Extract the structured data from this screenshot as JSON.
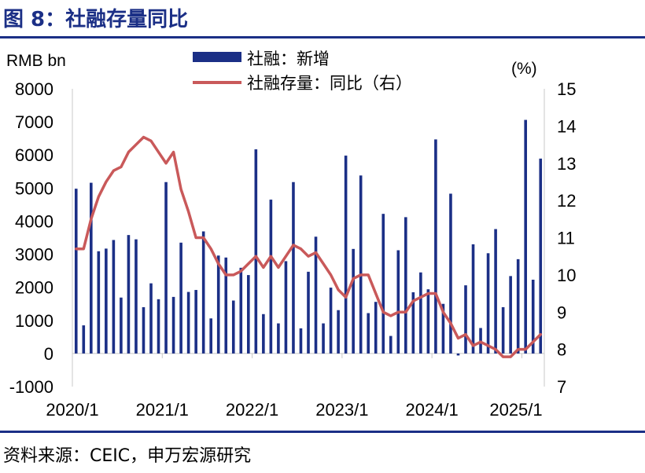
{
  "header": {
    "title": "图 8：社融存量同比"
  },
  "footer": {
    "source": "资料来源：CEIC，申万宏源研究"
  },
  "chart_data": {
    "type": "bar+line",
    "title": "图 8：社融存量同比",
    "y_left": {
      "label": "RMB bn",
      "range": [
        -1000,
        8000
      ],
      "ticks": [
        "-1000",
        "0",
        "1000",
        "2000",
        "3000",
        "4000",
        "5000",
        "6000",
        "7000",
        "8000"
      ]
    },
    "y_right": {
      "label": "(%)",
      "range": [
        7,
        15
      ],
      "ticks": [
        "7",
        "8",
        "9",
        "10",
        "11",
        "12",
        "13",
        "14",
        "15"
      ]
    },
    "x_ticks": [
      "2020/1",
      "2021/1",
      "2022/1",
      "2023/1",
      "2024/1",
      "2025/1"
    ],
    "x_start": "2020-01",
    "legend": {
      "position": "top-center"
    },
    "colors": {
      "bar": "#1b2f86",
      "line": "#c9595a",
      "accent": "#1b2f86"
    },
    "series": [
      {
        "name": "社融：新增",
        "type": "bar",
        "axis": "left",
        "values": [
          4980,
          850,
          5160,
          3090,
          3170,
          3430,
          1690,
          3580,
          3450,
          1400,
          2120,
          1640,
          5180,
          1710,
          3350,
          1860,
          1920,
          3690,
          1060,
          2960,
          2900,
          1600,
          2590,
          2370,
          6170,
          1190,
          4650,
          910,
          2790,
          5180,
          760,
          2470,
          3530,
          910,
          1990,
          1310,
          5980,
          3160,
          5380,
          1220,
          1560,
          4220,
          530,
          3120,
          4120,
          1850,
          2450,
          1940,
          6470,
          1500,
          4830,
          -60,
          2060,
          3300,
          770,
          3030,
          3760,
          1400,
          2340,
          2850,
          7060,
          2230,
          5890
        ]
      },
      {
        "name": "社融存量：同比（右）",
        "type": "line",
        "axis": "right",
        "values": [
          10.7,
          10.7,
          11.5,
          12.1,
          12.5,
          12.8,
          12.9,
          13.3,
          13.5,
          13.7,
          13.6,
          13.3,
          13.0,
          13.3,
          12.3,
          11.7,
          11.0,
          11.0,
          10.7,
          10.3,
          10.0,
          10.0,
          10.1,
          10.3,
          10.5,
          10.2,
          10.5,
          10.2,
          10.5,
          10.8,
          10.7,
          10.5,
          10.6,
          10.3,
          10.0,
          9.6,
          9.4,
          9.9,
          10.0,
          10.0,
          9.5,
          9.0,
          8.9,
          9.0,
          9.0,
          9.3,
          9.4,
          9.5,
          9.5,
          9.0,
          8.7,
          8.3,
          8.4,
          8.1,
          8.2,
          8.1,
          8.0,
          7.8,
          7.8,
          8.0,
          8.0,
          8.2,
          8.4
        ]
      }
    ]
  }
}
